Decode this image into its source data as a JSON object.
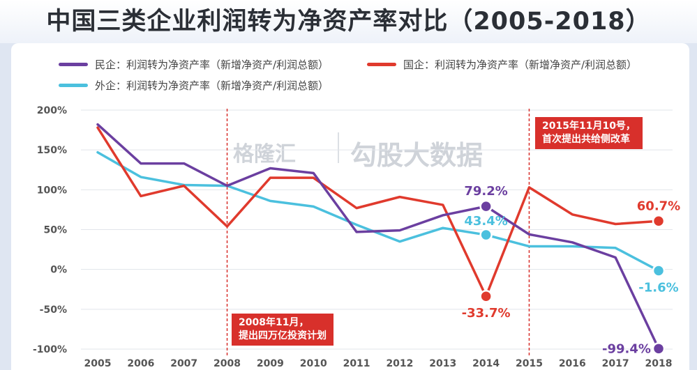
{
  "header": {
    "title": "中国三类企业利润转为净资产率对比（2005-2018）"
  },
  "legend": {
    "private": "民企：利润转为净资产率（新增净资产/利润总额）",
    "state": "国企：利润转为净资产率（新增净资产/利润总额）",
    "foreign": "外企：利润转为净资产率（新增净资产/利润总额）"
  },
  "watermark": {
    "logo": "格隆汇",
    "brand": "勾股大数据"
  },
  "callouts": {
    "c2008": [
      "2008年11月，",
      "提出四万亿投资计划"
    ],
    "c2015": [
      "2015年11月10号，",
      "首次提出共给侧改革"
    ]
  },
  "colors": {
    "private": "#6b3fa0",
    "state": "#e03a2d",
    "foreign": "#4bc0de",
    "text": "#555555"
  },
  "chart_data": {
    "type": "line",
    "categories": [
      "2005",
      "2006",
      "2007",
      "2008",
      "2009",
      "2010",
      "2011",
      "2012",
      "2013",
      "2014",
      "2015",
      "2016",
      "2017",
      "2018"
    ],
    "ylim": [
      -100,
      200
    ],
    "yticks": [
      200,
      150,
      100,
      50,
      0,
      -50,
      -100
    ],
    "ytick_labels": [
      "200%",
      "150%",
      "100%",
      "50%",
      "0%",
      "-50%",
      "-100%"
    ],
    "series": [
      {
        "name": "民企：利润转为净资产率（新增净资产/利润总额）",
        "key": "private",
        "values": [
          182,
          133,
          133,
          105,
          127,
          121,
          47,
          49,
          68,
          79.2,
          44,
          34,
          15,
          -99.4
        ]
      },
      {
        "name": "国企：利润转为净资产率（新增净资产/利润总额）",
        "key": "state",
        "values": [
          178,
          92,
          105,
          54,
          115,
          115,
          77,
          91,
          81,
          -33.7,
          103,
          69,
          57,
          60.7
        ]
      },
      {
        "name": "外企：利润转为净资产率（新增净资产/利润总额）",
        "key": "foreign",
        "values": [
          147,
          116,
          106,
          105,
          86,
          79,
          56,
          35,
          52,
          43.4,
          29,
          29,
          27,
          -1.6
        ]
      }
    ],
    "vlines": [
      "2008",
      "2015"
    ],
    "annotations": [
      {
        "series": "private",
        "category": "2014",
        "label": "79.2%"
      },
      {
        "series": "foreign",
        "category": "2014",
        "label": "43.4%"
      },
      {
        "series": "state",
        "category": "2014",
        "label": "-33.7%"
      },
      {
        "series": "state",
        "category": "2018",
        "label": "60.7%"
      },
      {
        "series": "foreign",
        "category": "2018",
        "label": "-1.6%"
      },
      {
        "series": "private",
        "category": "2018",
        "label": "-99.4%"
      }
    ]
  }
}
